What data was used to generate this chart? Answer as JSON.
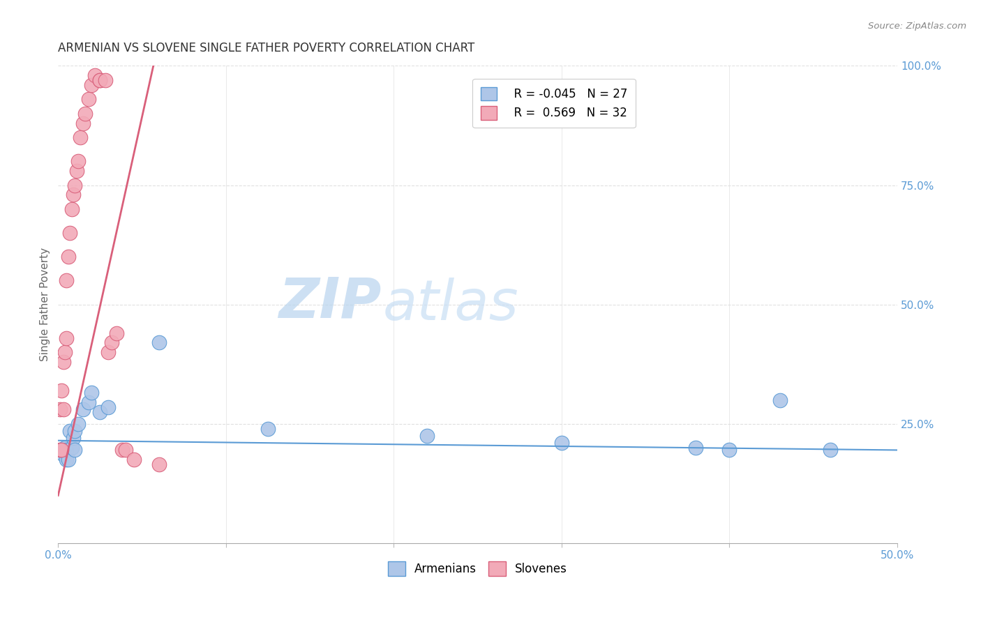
{
  "title": "ARMENIAN VS SLOVENE SINGLE FATHER POVERTY CORRELATION CHART",
  "source": "Source: ZipAtlas.com",
  "ylabel": "Single Father Poverty",
  "xlim": [
    0.0,
    0.5
  ],
  "ylim": [
    0.0,
    1.0
  ],
  "armenian_color": "#aec6e8",
  "slovene_color": "#f2aab8",
  "armenian_line_color": "#5b9bd5",
  "slovene_line_color": "#d95f7a",
  "legend_R_armenian": "R = -0.045",
  "legend_N_armenian": "N = 27",
  "legend_R_slovene": "R =  0.569",
  "legend_N_slovene": "N = 32",
  "armenian_x": [
    0.001,
    0.002,
    0.003,
    0.003,
    0.004,
    0.005,
    0.005,
    0.006,
    0.007,
    0.008,
    0.009,
    0.01,
    0.01,
    0.012,
    0.015,
    0.018,
    0.02,
    0.025,
    0.03,
    0.06,
    0.125,
    0.22,
    0.3,
    0.38,
    0.4,
    0.43,
    0.46
  ],
  "armenian_y": [
    0.195,
    0.195,
    0.195,
    0.185,
    0.2,
    0.175,
    0.195,
    0.175,
    0.235,
    0.2,
    0.22,
    0.195,
    0.235,
    0.25,
    0.28,
    0.295,
    0.315,
    0.275,
    0.285,
    0.42,
    0.24,
    0.225,
    0.21,
    0.2,
    0.195,
    0.3,
    0.195
  ],
  "slovene_x": [
    0.001,
    0.001,
    0.002,
    0.002,
    0.003,
    0.003,
    0.004,
    0.005,
    0.005,
    0.006,
    0.007,
    0.008,
    0.009,
    0.01,
    0.011,
    0.012,
    0.013,
    0.015,
    0.016,
    0.018,
    0.02,
    0.022,
    0.025,
    0.025,
    0.028,
    0.03,
    0.032,
    0.035,
    0.038,
    0.04,
    0.045,
    0.06
  ],
  "slovene_y": [
    0.195,
    0.28,
    0.195,
    0.32,
    0.28,
    0.38,
    0.4,
    0.43,
    0.55,
    0.6,
    0.65,
    0.7,
    0.73,
    0.75,
    0.78,
    0.8,
    0.85,
    0.88,
    0.9,
    0.93,
    0.96,
    0.98,
    0.97,
    0.97,
    0.97,
    0.4,
    0.42,
    0.44,
    0.195,
    0.195,
    0.175,
    0.165
  ],
  "watermark_zip_color": "#b8d4ee",
  "watermark_atlas_color": "#c8dff5",
  "background_color": "#ffffff",
  "grid_color": "#e0e0e0"
}
